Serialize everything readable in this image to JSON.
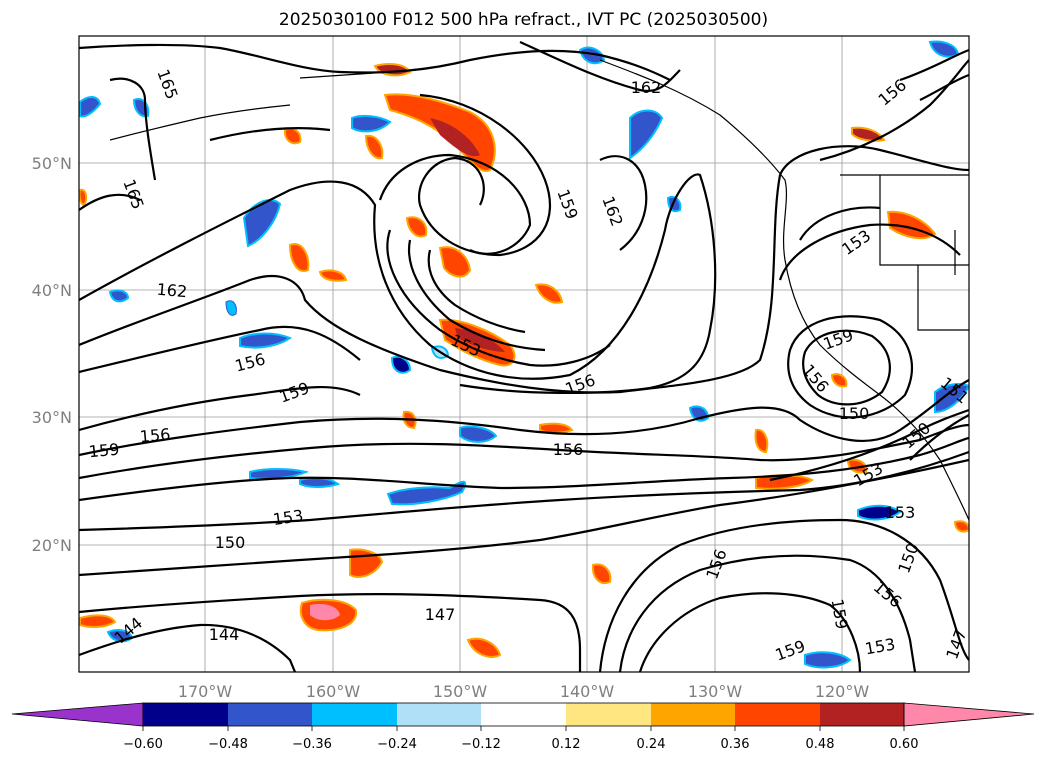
{
  "title": "2025030100 F012 500 hPa refract., IVT PC (2025030500)",
  "lat_labels": [
    "50°N",
    "40°N",
    "30°N",
    "20°N"
  ],
  "lon_labels": [
    "170°W",
    "160°W",
    "150°W",
    "140°W",
    "130°W",
    "120°W"
  ],
  "contour_labels": {
    "l165a": "165",
    "l165b": "165",
    "l162a": "162",
    "l162b": "162",
    "l162c": "162",
    "l159a": "159",
    "l159b": "159",
    "l159c": "159",
    "l159d": "159",
    "l159e": "159",
    "l156a": "156",
    "l156b": "156",
    "l156c": "156",
    "l156d": "156",
    "l156e": "156",
    "l156f": "156",
    "l156g": "156",
    "l156h": "156",
    "l153a": "153",
    "l153b": "153",
    "l153c": "153",
    "l153d": "153",
    "l153e": "153",
    "l153f": "153",
    "l150a": "150",
    "l150b": "150",
    "l150c": "150",
    "l150d": "150",
    "l147a": "147",
    "l147b": "147",
    "l144a": "144",
    "l144b": "144",
    "l151": "151"
  },
  "colorbar": {
    "ticks": [
      "−0.60",
      "−0.48",
      "−0.36",
      "−0.24",
      "−0.12",
      "0.12",
      "0.24",
      "0.36",
      "0.48",
      "0.60"
    ],
    "colors": [
      "#9933cc",
      "#00008b",
      "#3355cc",
      "#00bfff",
      "#b0e0f8",
      "#ffffff",
      "#ffe680",
      "#ffa500",
      "#ff4500",
      "#b22222",
      "#ff88aa"
    ]
  }
}
